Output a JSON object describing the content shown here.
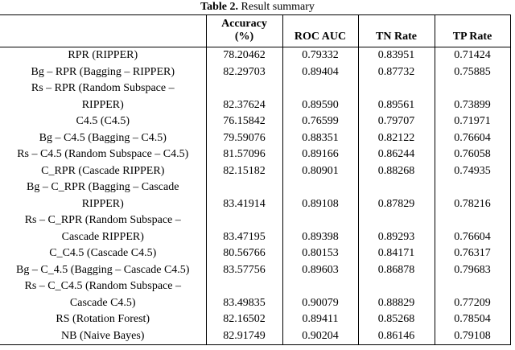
{
  "caption": {
    "label": "Table 2.",
    "text": " Result summary"
  },
  "columns": [
    "",
    "Accuracy\n(%)",
    "ROC AUC",
    "TN Rate",
    "TP Rate"
  ],
  "rows": [
    [
      "RPR (RIPPER)",
      "78.20462",
      "0.79332",
      "0.83951",
      "0.71424"
    ],
    [
      "Bg – RPR (Bagging – RIPPER)",
      "82.29703",
      "0.89404",
      "0.87732",
      "0.75885"
    ],
    [
      "Rs – RPR (Random Subspace –\nRIPPER)",
      "82.37624",
      "0.89590",
      "0.89561",
      "0.73899"
    ],
    [
      "C4.5 (C4.5)",
      "76.15842",
      "0.76599",
      "0.79707",
      "0.71971"
    ],
    [
      "Bg – C4.5 (Bagging – C4.5)",
      "79.59076",
      "0.88351",
      "0.82122",
      "0.76604"
    ],
    [
      "Rs – C4.5 (Random Subspace – C4.5)",
      "81.57096",
      "0.89166",
      "0.86244",
      "0.76058"
    ],
    [
      "C_RPR (Cascade RIPPER)",
      "82.15182",
      "0.80901",
      "0.88268",
      "0.74935"
    ],
    [
      "Bg – C_RPR (Bagging – Cascade\nRIPPER)",
      "83.41914",
      "0.89108",
      "0.87829",
      "0.78216"
    ],
    [
      "Rs – C_RPR (Random Subspace –\nCascade RIPPER)",
      "83.47195",
      "0.89398",
      "0.89293",
      "0.76604"
    ],
    [
      "C_C4.5 (Cascade C4.5)",
      "80.56766",
      "0.80153",
      "0.84171",
      "0.76317"
    ],
    [
      "Bg – C_4.5 (Bagging – Cascade C4.5)",
      "83.57756",
      "0.89603",
      "0.86878",
      "0.79683"
    ],
    [
      "Rs – C_C4.5 (Random Subspace –\nCascade C4.5)",
      "83.49835",
      "0.90079",
      "0.88829",
      "0.77209"
    ],
    [
      "RS (Rotation Forest)",
      "82.16502",
      "0.89411",
      "0.85268",
      "0.78504"
    ],
    [
      "NB (Naive Bayes)",
      "82.91749",
      "0.90204",
      "0.86146",
      "0.79108"
    ]
  ]
}
